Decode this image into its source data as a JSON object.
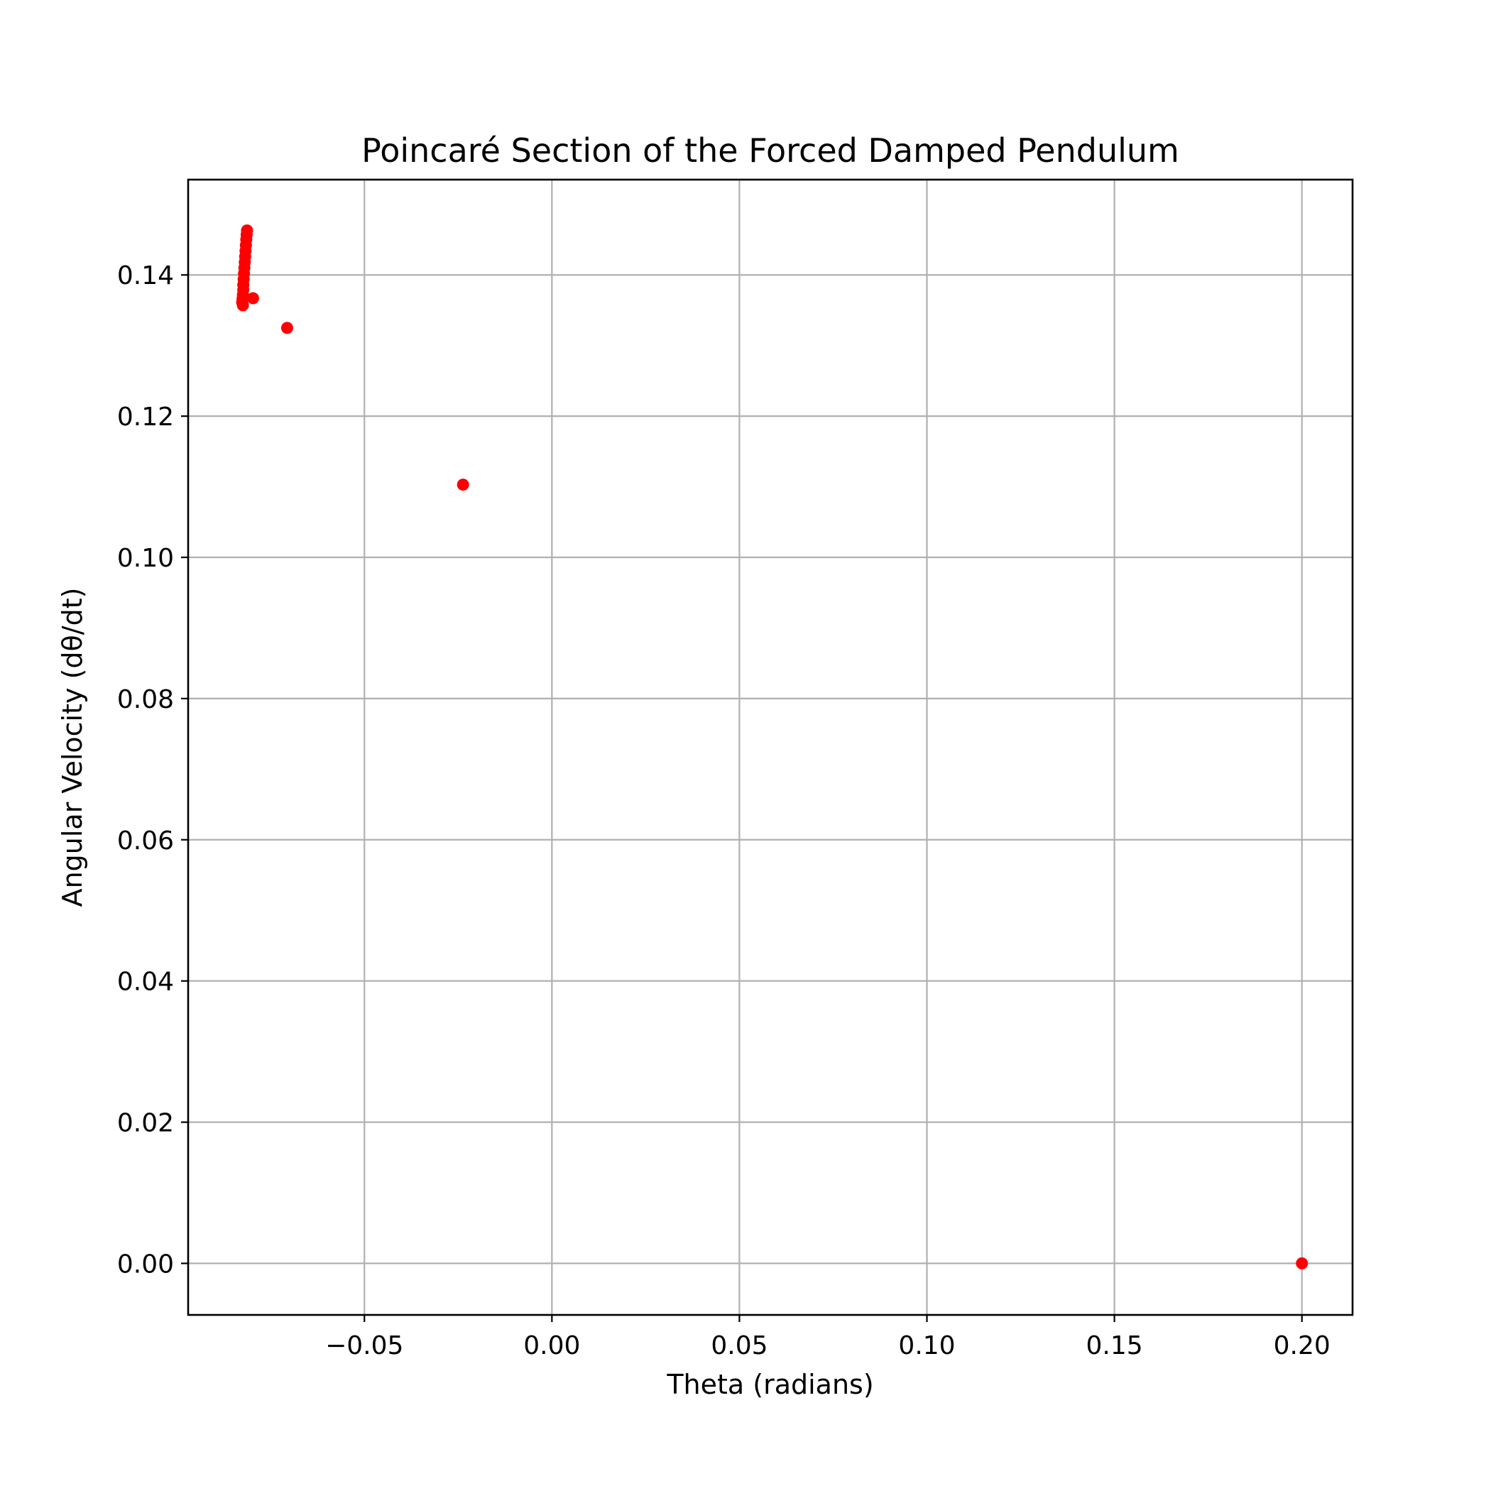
{
  "chart_data": {
    "type": "scatter",
    "title": "Poincaré Section of the Forced Damped Pendulum",
    "xlabel": "Theta (radians)",
    "ylabel": "Angular Velocity (dθ/dt)",
    "xlim": [
      -0.097,
      0.2135
    ],
    "ylim": [
      -0.0073,
      0.1535
    ],
    "xticks": [
      -0.05,
      0.0,
      0.05,
      0.1,
      0.15,
      0.2
    ],
    "xtick_labels": [
      "−0.05",
      "0.00",
      "0.05",
      "0.10",
      "0.15",
      "0.20"
    ],
    "yticks": [
      0.0,
      0.02,
      0.04,
      0.06,
      0.08,
      0.1,
      0.12,
      0.14
    ],
    "ytick_labels": [
      "0.00",
      "0.02",
      "0.04",
      "0.06",
      "0.08",
      "0.10",
      "0.12",
      "0.14"
    ],
    "grid": true,
    "marker_color": "#ff0000",
    "series": [
      {
        "points": [
          [
            0.2,
            0.0
          ],
          [
            -0.0237,
            0.1103
          ],
          [
            -0.0706,
            0.1325
          ],
          [
            -0.0797,
            0.1367
          ],
          [
            -0.0824,
            0.1357
          ],
          [
            -0.0826,
            0.1361
          ],
          [
            -0.0825,
            0.1366
          ],
          [
            -0.0824,
            0.1372
          ],
          [
            -0.0823,
            0.1379
          ],
          [
            -0.0823,
            0.1386
          ],
          [
            -0.0822,
            0.1394
          ],
          [
            -0.0821,
            0.1402
          ],
          [
            -0.082,
            0.141
          ],
          [
            -0.0819,
            0.1418
          ],
          [
            -0.0818,
            0.1426
          ],
          [
            -0.0817,
            0.1434
          ],
          [
            -0.0816,
            0.1442
          ],
          [
            -0.0815,
            0.145
          ],
          [
            -0.0814,
            0.1457
          ],
          [
            -0.0813,
            0.1463
          ]
        ]
      }
    ]
  }
}
